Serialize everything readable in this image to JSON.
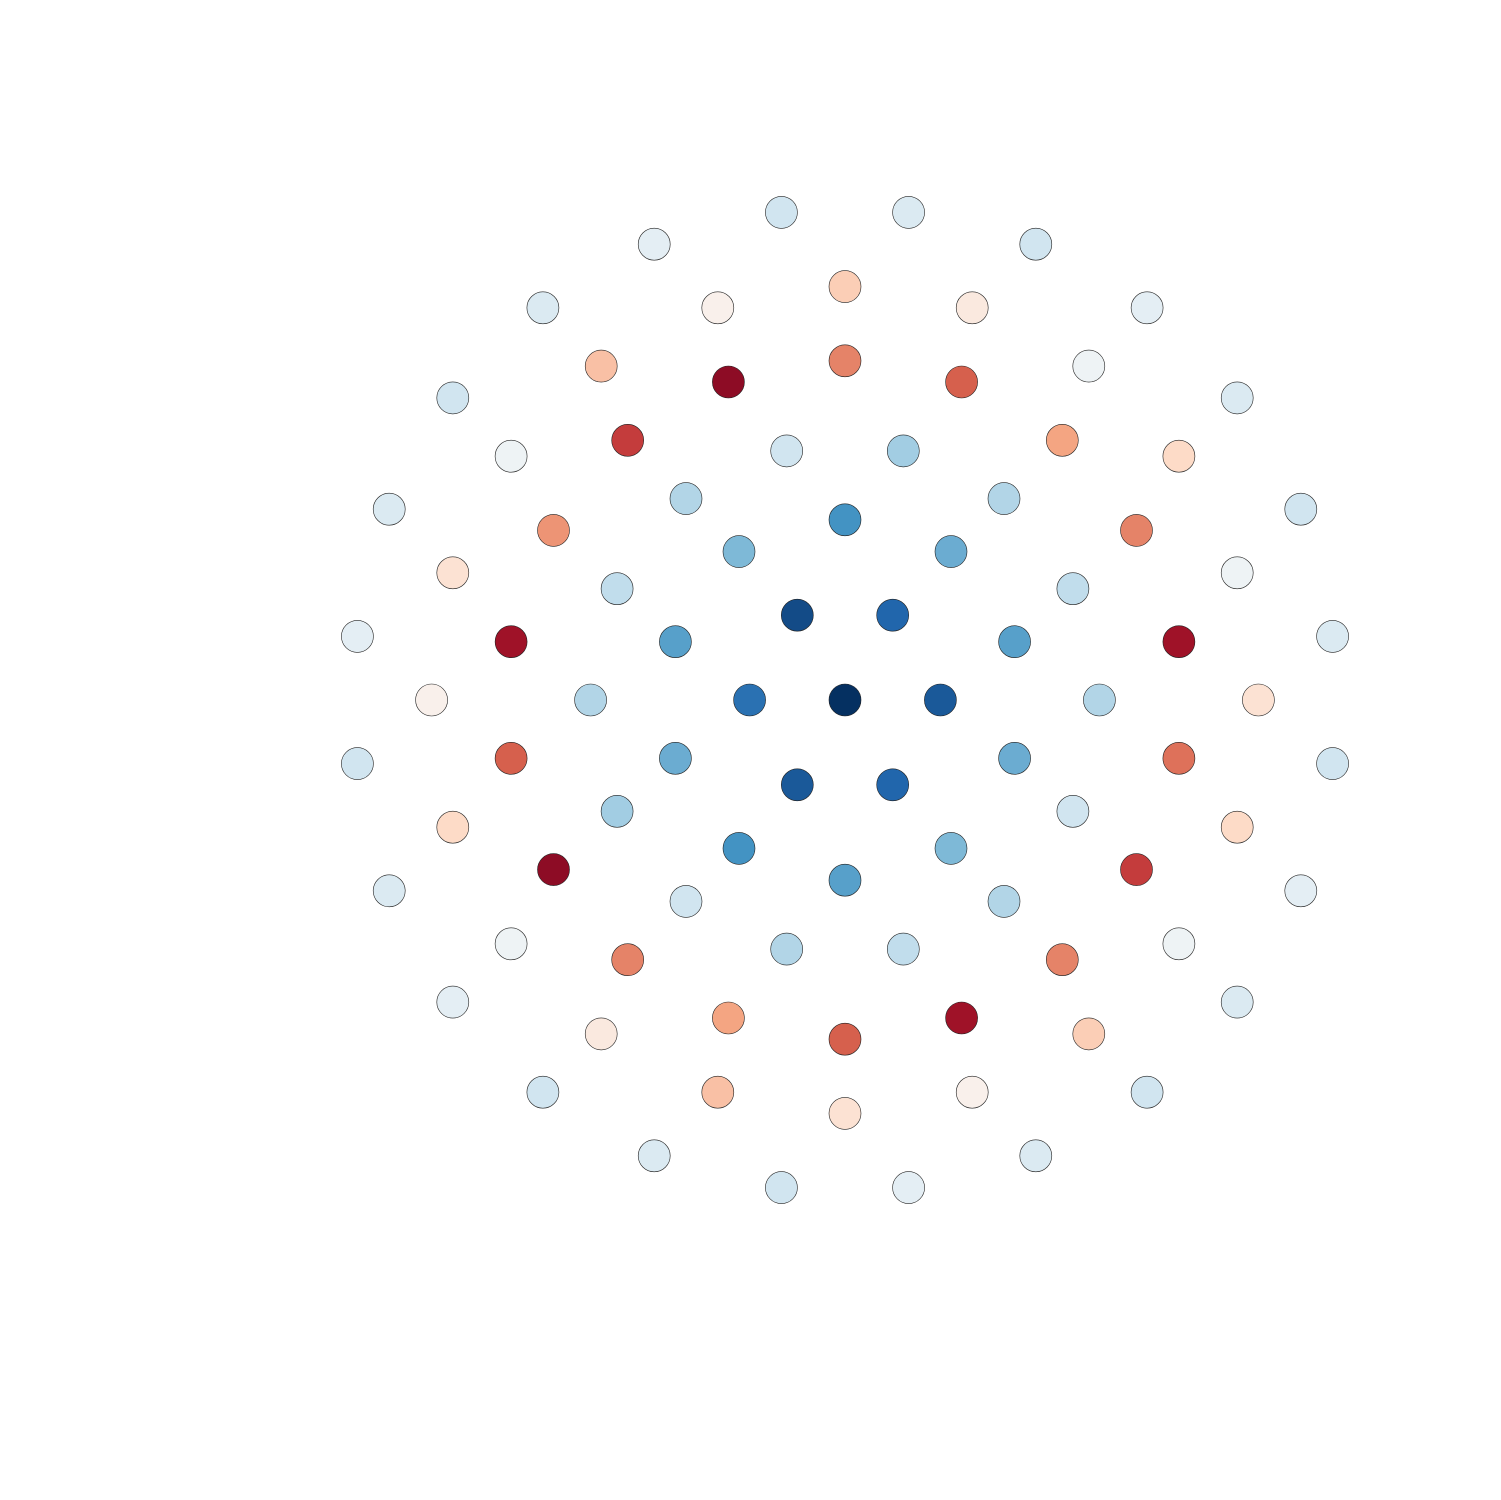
{
  "chart_data": {
    "type": "scatter",
    "xlim": [
      -1.1,
      1.1
    ],
    "ylim": [
      -1.1,
      1.1
    ],
    "clim": [
      -1,
      1
    ],
    "cmap": [
      "#053061",
      "#2166ac",
      "#4393c3",
      "#92c5de",
      "#d1e5f0",
      "#f7f7f7",
      "#fddbc7",
      "#f4a582",
      "#d6604d",
      "#b2182b",
      "#67001f"
    ],
    "x": [
      0,
      0.18,
      0.09,
      -0.09,
      -0.18,
      -0.09,
      0.09,
      0.32,
      0.2,
      0,
      -0.2,
      -0.32,
      -0.32,
      -0.2,
      0,
      0.2,
      0.32,
      0.48,
      0.43,
      0.3,
      0.11,
      -0.11,
      -0.3,
      -0.43,
      -0.48,
      -0.43,
      -0.3,
      -0.11,
      0.11,
      0.3,
      0.43,
      0.63,
      0.55,
      0.41,
      0.22,
      0,
      -0.22,
      -0.41,
      -0.55,
      -0.63,
      -0.63,
      -0.55,
      -0.41,
      -0.22,
      0,
      0.22,
      0.41,
      0.55,
      0.63,
      0.78,
      0.74,
      0.63,
      0.46,
      0.24,
      0,
      -0.24,
      -0.46,
      -0.63,
      -0.74,
      -0.78,
      -0.74,
      -0.63,
      -0.46,
      -0.24,
      0,
      0.24,
      0.46,
      0.63,
      0.74,
      0.92,
      0.86,
      0.74,
      0.57,
      0.36,
      0.12,
      -0.12,
      -0.36,
      -0.57,
      -0.74,
      -0.86,
      -0.92,
      -0.92,
      -0.86,
      -0.74,
      -0.57,
      -0.36,
      -0.12,
      0.12,
      0.36,
      0.57,
      0.74,
      0.86,
      0.92
    ],
    "y": [
      0,
      0,
      0.16,
      0.16,
      0,
      -0.16,
      -0.16,
      0.11,
      0.28,
      0.34,
      0.28,
      0.11,
      -0.11,
      -0.28,
      -0.34,
      -0.28,
      -0.11,
      0,
      0.21,
      0.38,
      0.47,
      0.47,
      0.38,
      0.21,
      0,
      -0.21,
      -0.38,
      -0.47,
      -0.47,
      -0.38,
      -0.21,
      0.11,
      0.32,
      0.49,
      0.6,
      0.64,
      0.6,
      0.49,
      0.32,
      0.11,
      -0.11,
      -0.32,
      -0.49,
      -0.6,
      -0.64,
      -0.6,
      -0.49,
      -0.32,
      -0.11,
      0,
      0.24,
      0.46,
      0.63,
      0.74,
      0.78,
      0.74,
      0.63,
      0.46,
      0.24,
      0,
      -0.24,
      -0.46,
      -0.63,
      -0.74,
      -0.78,
      -0.74,
      -0.63,
      -0.46,
      -0.24,
      0.12,
      0.36,
      0.57,
      0.74,
      0.86,
      0.92,
      0.92,
      0.86,
      0.74,
      0.57,
      0.36,
      0.12,
      -0.12,
      -0.36,
      -0.57,
      -0.74,
      -0.86,
      -0.92,
      -0.92,
      -0.86,
      -0.74,
      -0.57,
      -0.36,
      -0.12
    ],
    "values": [
      -1,
      -0.85,
      -0.8,
      -0.9,
      -0.75,
      -0.85,
      -0.8,
      -0.55,
      -0.5,
      -0.6,
      -0.45,
      -0.55,
      -0.5,
      -0.6,
      -0.55,
      -0.45,
      -0.5,
      -0.3,
      -0.25,
      -0.3,
      -0.35,
      -0.2,
      -0.3,
      -0.25,
      -0.3,
      -0.35,
      -0.2,
      -0.3,
      -0.25,
      -0.3,
      -0.2,
      0.85,
      0.5,
      0.4,
      0.6,
      0.5,
      0.9,
      0.7,
      0.45,
      0.85,
      0.6,
      0.9,
      0.5,
      0.4,
      0.6,
      0.85,
      0.5,
      0.7,
      0.55,
      0.15,
      -0.05,
      0.2,
      -0.05,
      0.1,
      0.25,
      0.05,
      0.3,
      -0.05,
      0.15,
      0.05,
      0.2,
      -0.05,
      0.1,
      0.3,
      0.15,
      0.05,
      0.25,
      -0.05,
      0.2,
      -0.15,
      -0.2,
      -0.15,
      -0.1,
      -0.2,
      -0.15,
      -0.2,
      -0.1,
      -0.15,
      -0.2,
      -0.15,
      -0.1,
      -0.2,
      -0.15,
      -0.1,
      -0.2,
      -0.15,
      -0.2,
      -0.1,
      -0.15,
      -0.2,
      -0.15,
      -0.1,
      -0.2
    ]
  }
}
